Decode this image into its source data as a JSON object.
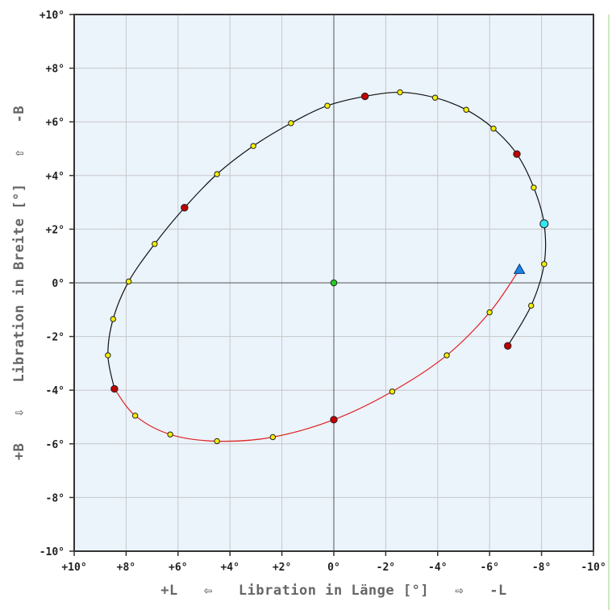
{
  "chart_data": {
    "type": "scatter",
    "title": "",
    "xlabel": "+L   ⇦   Libration in Länge [°]   ⇨   -L",
    "ylabel": "+B   ⇩   Libration in Breite [°]   ⇧   -B",
    "xlim": [
      10,
      -10
    ],
    "ylim": [
      10,
      -10
    ],
    "grid": true,
    "x_ticks": [
      10,
      8,
      6,
      4,
      2,
      0,
      -2,
      -4,
      -6,
      -8,
      -10
    ],
    "x_tick_labels": [
      "+10°",
      "+8°",
      "+6°",
      "+4°",
      "+2°",
      "0°",
      "-2°",
      "-4°",
      "-6°",
      "-8°",
      "-10°"
    ],
    "y_ticks": [
      -10,
      -8,
      -6,
      -4,
      -2,
      0,
      2,
      4,
      6,
      8,
      10
    ],
    "y_tick_labels": [
      "-10°",
      "-8°",
      "-6°",
      "-4°",
      "-2°",
      "0°",
      "+2°",
      "+4°",
      "+6°",
      "+8°",
      "+10°"
    ],
    "colors": {
      "plot_background": "#ebf3fb",
      "grid": "#c8c8c8",
      "axis_line": "#555555",
      "path_red": "#e02020",
      "path_black": "#111111",
      "point_yellow": "#f5f000",
      "point_red": "#c00000",
      "center_green": "#22cc22",
      "current_cyan": "#33e6f0",
      "start_blue": "#1e82e0"
    },
    "series": [
      {
        "style": "path-red",
        "points": [
          [
            -7.15,
            0.5
          ],
          [
            -6.0,
            -1.1
          ],
          [
            -4.35,
            -2.7
          ],
          [
            -2.25,
            -4.05
          ],
          [
            0.0,
            -5.1
          ],
          [
            2.35,
            -5.75
          ],
          [
            4.5,
            -5.9
          ],
          [
            6.3,
            -5.65
          ],
          [
            7.65,
            -4.95
          ],
          [
            8.45,
            -3.95
          ]
        ]
      },
      {
        "style": "path-black",
        "points": [
          [
            8.45,
            -3.95
          ],
          [
            8.7,
            -2.7
          ],
          [
            8.5,
            -1.35
          ],
          [
            7.9,
            0.05
          ],
          [
            6.9,
            1.45
          ],
          [
            5.75,
            2.8
          ],
          [
            4.5,
            4.05
          ],
          [
            3.1,
            5.1
          ],
          [
            1.65,
            5.95
          ],
          [
            0.25,
            6.6
          ],
          [
            -1.2,
            6.95
          ],
          [
            -2.55,
            7.1
          ],
          [
            -3.9,
            6.9
          ],
          [
            -5.1,
            6.45
          ],
          [
            -6.15,
            5.75
          ],
          [
            -7.05,
            4.8
          ],
          [
            -7.7,
            3.55
          ],
          [
            -8.1,
            2.2
          ],
          [
            -8.1,
            0.7
          ],
          [
            -7.6,
            -0.85
          ],
          [
            -6.7,
            -2.35
          ]
        ]
      },
      {
        "name_hidden": "yellow",
        "style": "point-yellow",
        "points": [
          [
            -6.0,
            -1.1
          ],
          [
            -4.35,
            -2.7
          ],
          [
            -2.25,
            -4.05
          ],
          [
            2.35,
            -5.75
          ],
          [
            4.5,
            -5.9
          ],
          [
            6.3,
            -5.65
          ],
          [
            7.65,
            -4.95
          ],
          [
            8.7,
            -2.7
          ],
          [
            8.5,
            -1.35
          ],
          [
            7.9,
            0.05
          ],
          [
            6.9,
            1.45
          ],
          [
            4.5,
            4.05
          ],
          [
            3.1,
            5.1
          ],
          [
            1.65,
            5.95
          ],
          [
            0.25,
            6.6
          ],
          [
            -2.55,
            7.1
          ],
          [
            -3.9,
            6.9
          ],
          [
            -5.1,
            6.45
          ],
          [
            -6.15,
            5.75
          ],
          [
            -7.7,
            3.55
          ],
          [
            -8.1,
            0.7
          ],
          [
            -7.6,
            -0.85
          ]
        ]
      },
      {
        "style": "point-red",
        "points": [
          [
            0.0,
            -5.1
          ],
          [
            8.45,
            -3.95
          ],
          [
            5.75,
            2.8
          ],
          [
            -1.2,
            6.95
          ],
          [
            -7.05,
            4.8
          ],
          [
            -6.7,
            -2.35
          ]
        ]
      },
      {
        "style": "point-green",
        "points": [
          [
            0.0,
            0.0
          ]
        ]
      },
      {
        "style": "point-cyan",
        "points": [
          [
            -8.1,
            2.2
          ]
        ]
      },
      {
        "style": "triangle-blue",
        "points": [
          [
            -7.15,
            0.5
          ]
        ]
      }
    ]
  }
}
